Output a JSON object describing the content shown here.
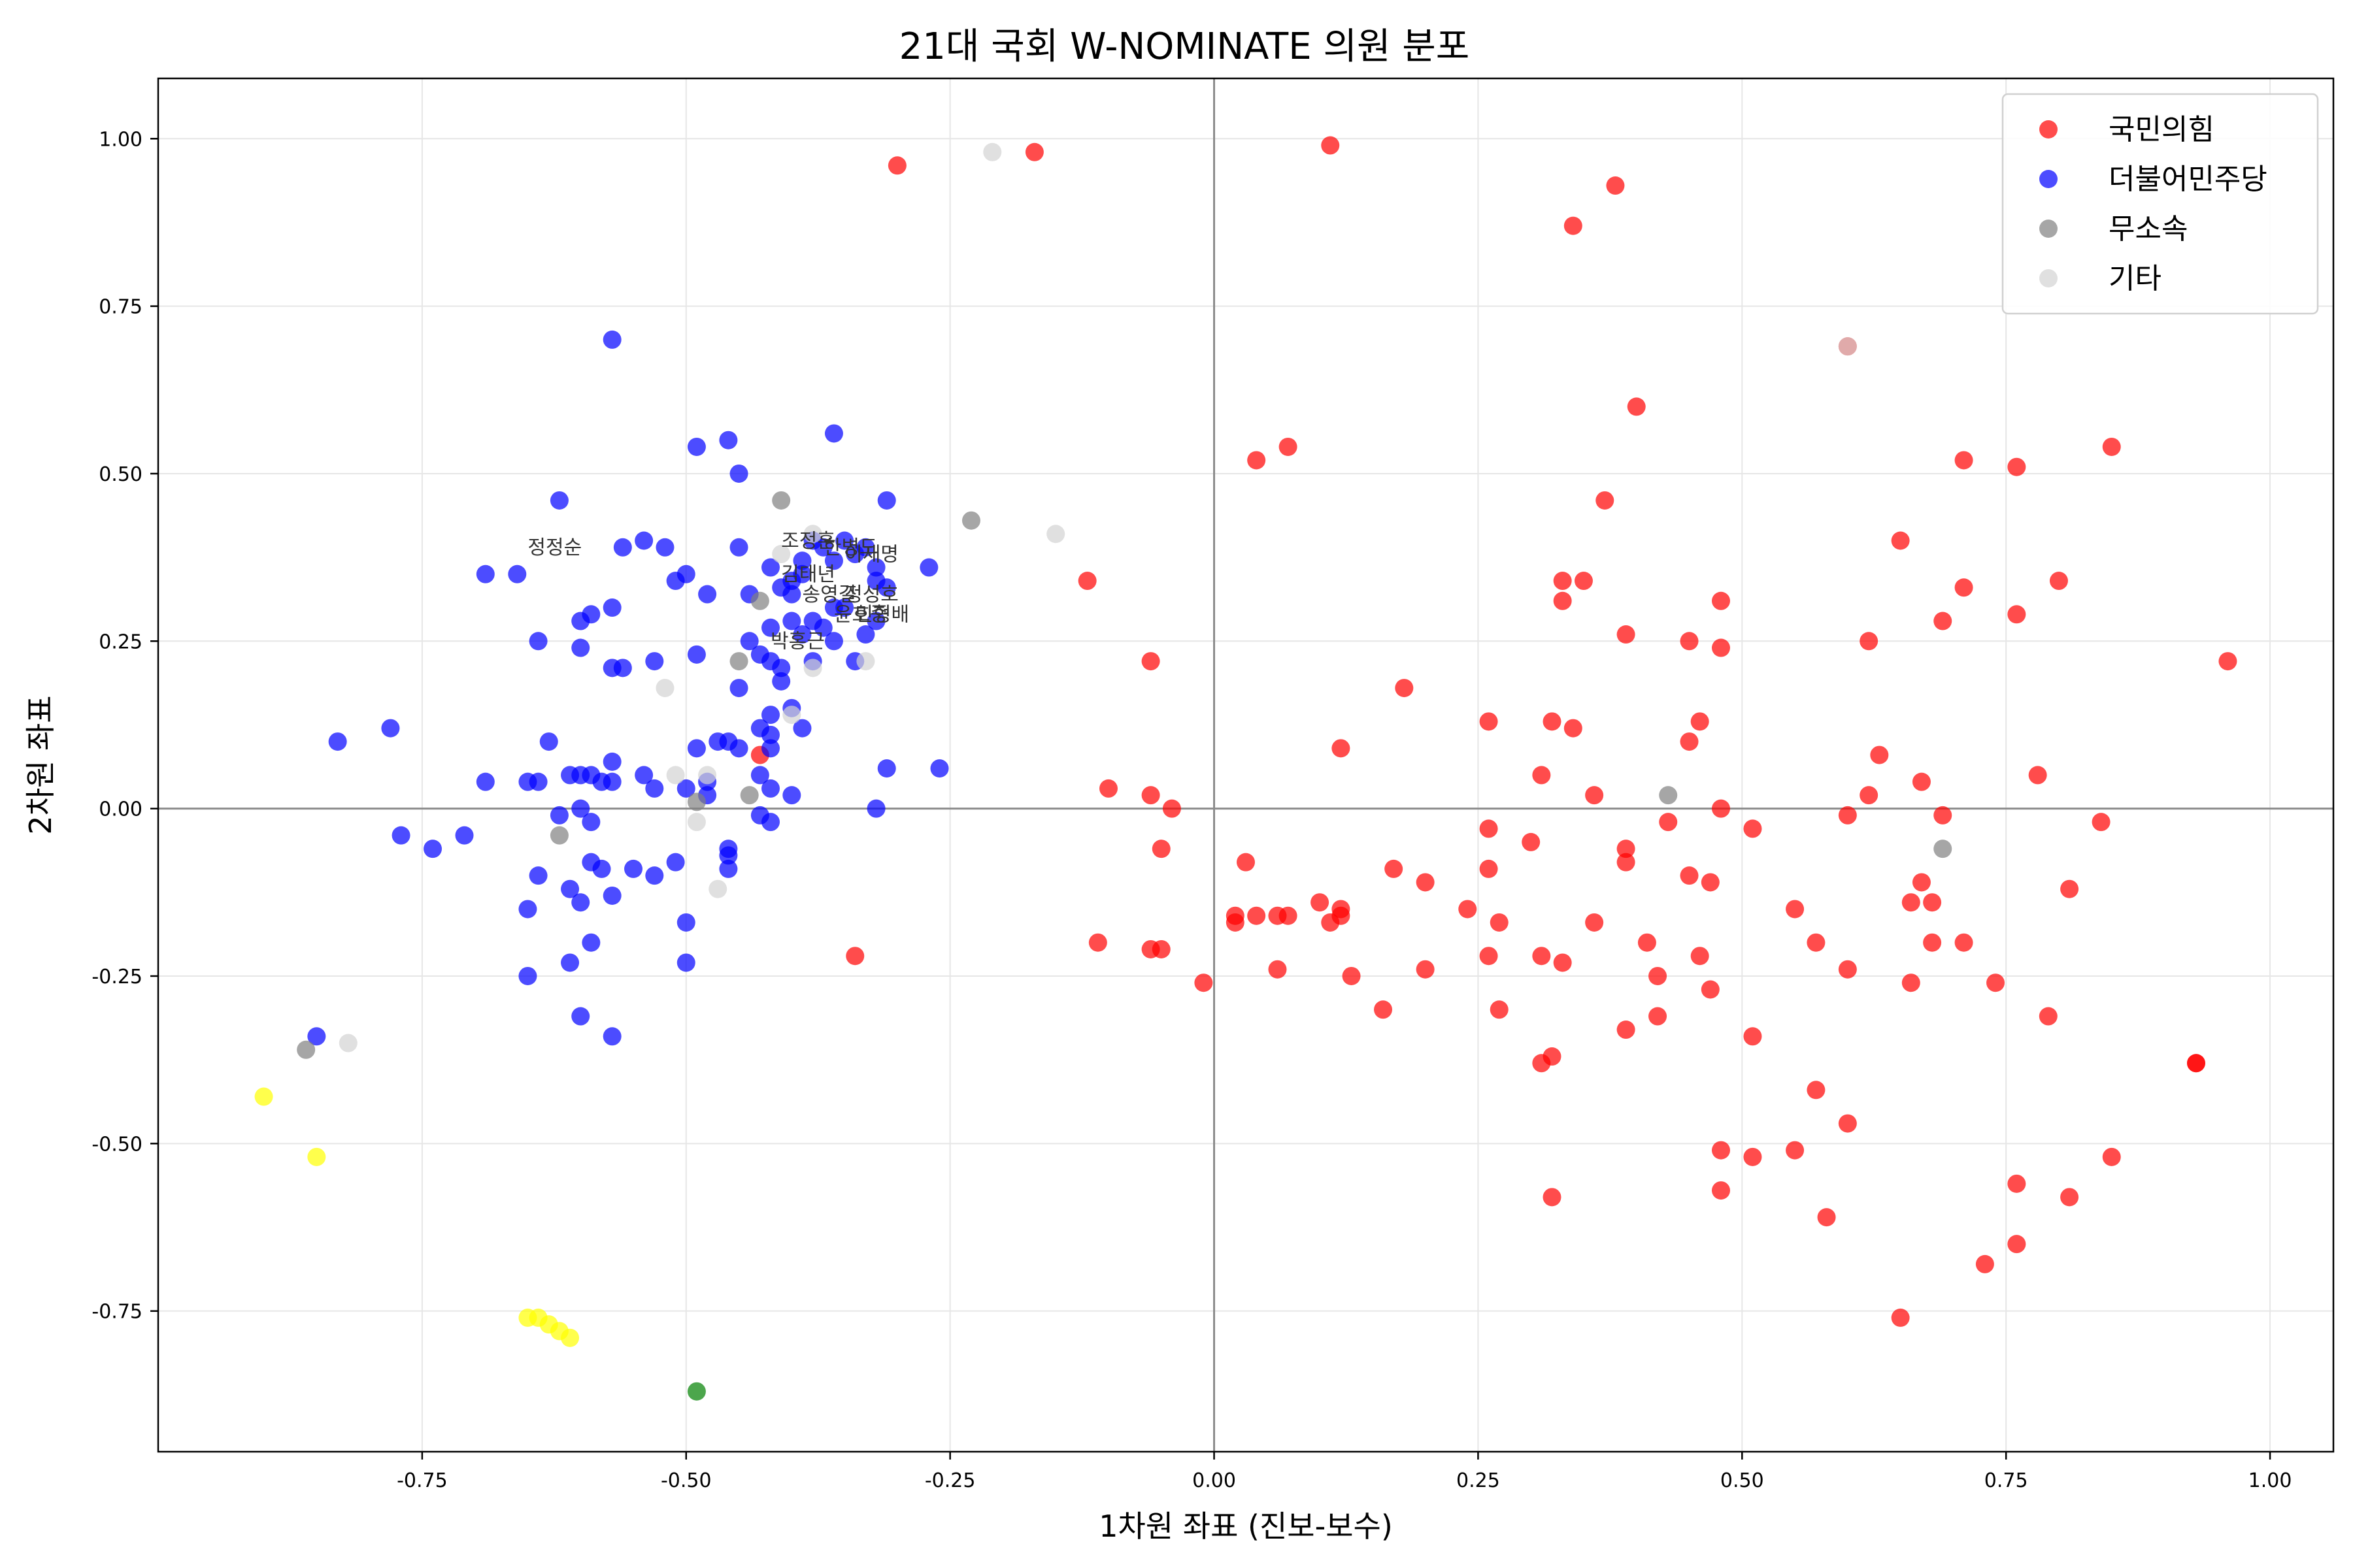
{
  "chart_data": {
    "type": "scatter",
    "title": "21대 국회 W-NOMINATE 의원 분포",
    "xlabel": "1차원 좌표 (진보-보수)",
    "ylabel": "2차원 좌표",
    "xlim": [
      -1.0,
      1.06
    ],
    "ylim": [
      -0.96,
      1.09
    ],
    "xticks": [
      -0.75,
      -0.5,
      -0.25,
      0.0,
      0.25,
      0.5,
      0.75,
      1.0
    ],
    "yticks": [
      -0.75,
      -0.5,
      -0.25,
      0.0,
      0.25,
      0.5,
      0.75,
      1.0
    ],
    "xtick_labels": [
      "-0.75",
      "-0.50",
      "-0.25",
      "0.00",
      "0.25",
      "0.50",
      "0.75",
      "1.00"
    ],
    "ytick_labels": [
      "-0.75",
      "-0.50",
      "-0.25",
      "0.00",
      "0.25",
      "0.50",
      "0.75",
      "1.00"
    ],
    "grid": true,
    "reference_lines": {
      "x": 0,
      "y": 0
    },
    "legend_position": "top-right",
    "series": [
      {
        "name": "국민의힘",
        "color": "#ff0000",
        "legend": true,
        "points": [
          [
            -0.3,
            0.96
          ],
          [
            -0.17,
            0.98
          ],
          [
            0.11,
            0.99
          ],
          [
            0.38,
            0.93
          ],
          [
            0.34,
            0.87
          ],
          [
            0.4,
            0.6
          ],
          [
            0.6,
            0.69
          ],
          [
            0.04,
            0.52
          ],
          [
            0.07,
            0.54
          ],
          [
            0.37,
            0.46
          ],
          [
            0.71,
            0.52
          ],
          [
            0.76,
            0.51
          ],
          [
            0.85,
            0.54
          ],
          [
            -0.12,
            0.34
          ],
          [
            0.33,
            0.34
          ],
          [
            0.35,
            0.34
          ],
          [
            0.33,
            0.31
          ],
          [
            0.48,
            0.31
          ],
          [
            0.65,
            0.4
          ],
          [
            0.71,
            0.33
          ],
          [
            0.8,
            0.34
          ],
          [
            0.39,
            0.26
          ],
          [
            0.45,
            0.25
          ],
          [
            0.48,
            0.24
          ],
          [
            0.62,
            0.25
          ],
          [
            0.69,
            0.28
          ],
          [
            0.76,
            0.29
          ],
          [
            0.96,
            0.22
          ],
          [
            -0.06,
            0.22
          ],
          [
            0.18,
            0.18
          ],
          [
            0.26,
            0.13
          ],
          [
            0.32,
            0.13
          ],
          [
            0.34,
            0.12
          ],
          [
            0.46,
            0.13
          ],
          [
            0.45,
            0.1
          ],
          [
            0.12,
            0.09
          ],
          [
            0.31,
            0.05
          ],
          [
            0.36,
            0.02
          ],
          [
            0.63,
            0.08
          ],
          [
            0.67,
            0.04
          ],
          [
            0.62,
            0.02
          ],
          [
            0.78,
            0.05
          ],
          [
            -0.1,
            0.03
          ],
          [
            -0.06,
            0.02
          ],
          [
            -0.04,
            0.0
          ],
          [
            0.48,
            0.0
          ],
          [
            0.6,
            -0.01
          ],
          [
            0.69,
            -0.01
          ],
          [
            0.51,
            -0.03
          ],
          [
            0.43,
            -0.02
          ],
          [
            0.26,
            -0.03
          ],
          [
            0.3,
            -0.05
          ],
          [
            0.39,
            -0.06
          ],
          [
            0.84,
            -0.02
          ],
          [
            -0.05,
            -0.06
          ],
          [
            0.03,
            -0.08
          ],
          [
            0.17,
            -0.09
          ],
          [
            0.26,
            -0.09
          ],
          [
            0.39,
            -0.08
          ],
          [
            0.45,
            -0.1
          ],
          [
            0.47,
            -0.11
          ],
          [
            0.2,
            -0.11
          ],
          [
            0.67,
            -0.11
          ],
          [
            0.81,
            -0.12
          ],
          [
            0.02,
            -0.16
          ],
          [
            0.02,
            -0.17
          ],
          [
            0.04,
            -0.16
          ],
          [
            0.06,
            -0.16
          ],
          [
            0.07,
            -0.16
          ],
          [
            0.1,
            -0.14
          ],
          [
            0.12,
            -0.15
          ],
          [
            0.12,
            -0.16
          ],
          [
            0.11,
            -0.17
          ],
          [
            0.24,
            -0.15
          ],
          [
            0.27,
            -0.17
          ],
          [
            0.36,
            -0.17
          ],
          [
            0.55,
            -0.15
          ],
          [
            0.66,
            -0.14
          ],
          [
            0.68,
            -0.14
          ],
          [
            -0.11,
            -0.2
          ],
          [
            -0.06,
            -0.21
          ],
          [
            -0.05,
            -0.21
          ],
          [
            0.41,
            -0.2
          ],
          [
            0.57,
            -0.2
          ],
          [
            0.68,
            -0.2
          ],
          [
            0.71,
            -0.2
          ],
          [
            -0.34,
            -0.22
          ],
          [
            0.06,
            -0.24
          ],
          [
            0.13,
            -0.25
          ],
          [
            0.2,
            -0.24
          ],
          [
            0.26,
            -0.22
          ],
          [
            0.31,
            -0.22
          ],
          [
            0.33,
            -0.23
          ],
          [
            0.42,
            -0.25
          ],
          [
            0.46,
            -0.22
          ],
          [
            0.6,
            -0.24
          ],
          [
            0.66,
            -0.26
          ],
          [
            0.74,
            -0.26
          ],
          [
            -0.01,
            -0.26
          ],
          [
            0.16,
            -0.3
          ],
          [
            0.27,
            -0.3
          ],
          [
            0.42,
            -0.31
          ],
          [
            0.47,
            -0.27
          ],
          [
            0.39,
            -0.33
          ],
          [
            0.51,
            -0.34
          ],
          [
            0.79,
            -0.31
          ],
          [
            0.31,
            -0.38
          ],
          [
            0.32,
            -0.37
          ],
          [
            0.93,
            -0.38
          ],
          [
            0.93,
            -0.38
          ],
          [
            0.57,
            -0.42
          ],
          [
            0.6,
            -0.47
          ],
          [
            0.55,
            -0.51
          ],
          [
            0.48,
            -0.51
          ],
          [
            0.51,
            -0.52
          ],
          [
            0.85,
            -0.52
          ],
          [
            0.76,
            -0.56
          ],
          [
            0.48,
            -0.57
          ],
          [
            0.81,
            -0.58
          ],
          [
            0.32,
            -0.58
          ],
          [
            0.58,
            -0.61
          ],
          [
            0.76,
            -0.65
          ],
          [
            0.73,
            -0.68
          ],
          [
            0.65,
            -0.76
          ],
          [
            -0.43,
            0.08
          ]
        ]
      },
      {
        "name": "더불어민주당",
        "color": "#0000ff",
        "legend": true,
        "points": [
          [
            -0.57,
            0.7
          ],
          [
            -0.36,
            0.56
          ],
          [
            -0.49,
            0.54
          ],
          [
            -0.46,
            0.55
          ],
          [
            -0.45,
            0.5
          ],
          [
            -0.62,
            0.46
          ],
          [
            -0.31,
            0.46
          ],
          [
            -0.69,
            0.35
          ],
          [
            -0.66,
            0.35
          ],
          [
            -0.56,
            0.39
          ],
          [
            -0.54,
            0.4
          ],
          [
            -0.52,
            0.39
          ],
          [
            -0.51,
            0.34
          ],
          [
            -0.5,
            0.35
          ],
          [
            -0.45,
            0.39
          ],
          [
            -0.48,
            0.32
          ],
          [
            -0.44,
            0.32
          ],
          [
            -0.42,
            0.36
          ],
          [
            -0.4,
            0.34
          ],
          [
            -0.39,
            0.37
          ],
          [
            -0.38,
            0.4
          ],
          [
            -0.37,
            0.39
          ],
          [
            -0.36,
            0.37
          ],
          [
            -0.35,
            0.4
          ],
          [
            -0.34,
            0.38
          ],
          [
            -0.33,
            0.39
          ],
          [
            -0.32,
            0.36
          ],
          [
            -0.32,
            0.34
          ],
          [
            -0.31,
            0.33
          ],
          [
            -0.27,
            0.36
          ],
          [
            -0.57,
            0.3
          ],
          [
            -0.59,
            0.29
          ],
          [
            -0.6,
            0.28
          ],
          [
            -0.64,
            0.25
          ],
          [
            -0.6,
            0.24
          ],
          [
            -0.57,
            0.21
          ],
          [
            -0.56,
            0.21
          ],
          [
            -0.53,
            0.22
          ],
          [
            -0.49,
            0.23
          ],
          [
            -0.44,
            0.25
          ],
          [
            -0.43,
            0.23
          ],
          [
            -0.42,
            0.22
          ],
          [
            -0.41,
            0.21
          ],
          [
            -0.4,
            0.28
          ],
          [
            -0.39,
            0.26
          ],
          [
            -0.38,
            0.28
          ],
          [
            -0.37,
            0.27
          ],
          [
            -0.36,
            0.25
          ],
          [
            -0.35,
            0.3
          ],
          [
            -0.34,
            0.22
          ],
          [
            -0.33,
            0.26
          ],
          [
            -0.32,
            0.28
          ],
          [
            -0.41,
            0.19
          ],
          [
            -0.4,
            0.15
          ],
          [
            -0.42,
            0.14
          ],
          [
            -0.43,
            0.12
          ],
          [
            -0.45,
            0.18
          ],
          [
            -0.38,
            0.22
          ],
          [
            -0.36,
            0.3
          ],
          [
            -0.4,
            0.32
          ],
          [
            -0.39,
            0.35
          ],
          [
            -0.41,
            0.33
          ],
          [
            -0.42,
            0.27
          ],
          [
            -0.83,
            0.1
          ],
          [
            -0.78,
            0.12
          ],
          [
            -0.69,
            0.04
          ],
          [
            -0.63,
            0.1
          ],
          [
            -0.6,
            0.05
          ],
          [
            -0.58,
            0.04
          ],
          [
            -0.57,
            0.04
          ],
          [
            -0.57,
            0.07
          ],
          [
            -0.54,
            0.05
          ],
          [
            -0.53,
            0.03
          ],
          [
            -0.5,
            0.03
          ],
          [
            -0.47,
            0.1
          ],
          [
            -0.46,
            0.1
          ],
          [
            -0.45,
            0.09
          ],
          [
            -0.43,
            0.05
          ],
          [
            -0.42,
            0.09
          ],
          [
            -0.42,
            0.03
          ],
          [
            -0.4,
            0.02
          ],
          [
            -0.39,
            0.12
          ],
          [
            -0.42,
            0.11
          ],
          [
            -0.49,
            0.09
          ],
          [
            -0.48,
            0.04
          ],
          [
            -0.48,
            0.02
          ],
          [
            -0.31,
            0.06
          ],
          [
            -0.26,
            0.06
          ],
          [
            -0.32,
            0.0
          ],
          [
            -0.65,
            0.04
          ],
          [
            -0.64,
            0.04
          ],
          [
            -0.61,
            0.05
          ],
          [
            -0.62,
            -0.01
          ],
          [
            -0.59,
            -0.02
          ],
          [
            -0.6,
            0.0
          ],
          [
            -0.59,
            0.05
          ],
          [
            -0.46,
            -0.06
          ],
          [
            -0.46,
            -0.07
          ],
          [
            -0.43,
            -0.01
          ],
          [
            -0.42,
            -0.02
          ],
          [
            -0.77,
            -0.04
          ],
          [
            -0.74,
            -0.06
          ],
          [
            -0.71,
            -0.04
          ],
          [
            -0.64,
            -0.1
          ],
          [
            -0.61,
            -0.12
          ],
          [
            -0.6,
            -0.14
          ],
          [
            -0.59,
            -0.08
          ],
          [
            -0.58,
            -0.09
          ],
          [
            -0.57,
            -0.13
          ],
          [
            -0.55,
            -0.09
          ],
          [
            -0.53,
            -0.1
          ],
          [
            -0.51,
            -0.08
          ],
          [
            -0.46,
            -0.09
          ],
          [
            -0.65,
            -0.15
          ],
          [
            -0.59,
            -0.2
          ],
          [
            -0.61,
            -0.23
          ],
          [
            -0.5,
            -0.17
          ],
          [
            -0.5,
            -0.23
          ],
          [
            -0.65,
            -0.25
          ],
          [
            -0.6,
            -0.31
          ],
          [
            -0.57,
            -0.34
          ],
          [
            -0.85,
            -0.34
          ]
        ]
      },
      {
        "name": "무소속",
        "color": "#808080",
        "legend": true,
        "points": [
          [
            -0.41,
            0.46
          ],
          [
            -0.23,
            0.43
          ],
          [
            -0.43,
            0.31
          ],
          [
            -0.45,
            0.22
          ],
          [
            -0.44,
            0.02
          ],
          [
            -0.49,
            0.01
          ],
          [
            -0.62,
            -0.04
          ],
          [
            0.43,
            0.02
          ],
          [
            0.69,
            -0.06
          ],
          [
            -0.86,
            -0.36
          ]
        ]
      },
      {
        "name": "기타",
        "color": "#d3d3d3",
        "legend": true,
        "points": [
          [
            -0.21,
            0.98
          ],
          [
            -0.15,
            0.41
          ],
          [
            0.6,
            0.69
          ],
          [
            -0.38,
            0.41
          ],
          [
            -0.41,
            0.38
          ],
          [
            -0.38,
            0.21
          ],
          [
            -0.33,
            0.22
          ],
          [
            -0.4,
            0.14
          ],
          [
            -0.52,
            0.18
          ],
          [
            -0.51,
            0.05
          ],
          [
            -0.48,
            0.05
          ],
          [
            -0.49,
            -0.02
          ],
          [
            -0.47,
            -0.12
          ],
          [
            -0.82,
            -0.35
          ]
        ]
      },
      {
        "name": "",
        "color": "#ffff00",
        "legend": false,
        "points": [
          [
            -0.9,
            -0.43
          ],
          [
            -0.85,
            -0.52
          ],
          [
            -0.65,
            -0.76
          ],
          [
            -0.64,
            -0.76
          ],
          [
            -0.63,
            -0.77
          ],
          [
            -0.62,
            -0.78
          ],
          [
            -0.61,
            -0.79
          ]
        ]
      },
      {
        "name": "",
        "color": "#008000",
        "legend": false,
        "points": [
          [
            -0.49,
            -0.87
          ]
        ]
      }
    ],
    "annotations": [
      {
        "text": "정정순",
        "x": -0.65,
        "y": 0.38
      },
      {
        "text": "조정훈",
        "x": -0.41,
        "y": 0.39
      },
      {
        "text": "한병도",
        "x": -0.37,
        "y": 0.38
      },
      {
        "text": "이재명",
        "x": -0.35,
        "y": 0.37
      },
      {
        "text": "김태년",
        "x": -0.41,
        "y": 0.34
      },
      {
        "text": "송영길",
        "x": -0.39,
        "y": 0.31
      },
      {
        "text": "윤호중",
        "x": -0.36,
        "y": 0.28
      },
      {
        "text": "박홍근",
        "x": -0.42,
        "y": 0.24
      },
      {
        "text": "정성호",
        "x": -0.35,
        "y": 0.31
      },
      {
        "text": "민형배",
        "x": -0.34,
        "y": 0.28
      }
    ]
  }
}
